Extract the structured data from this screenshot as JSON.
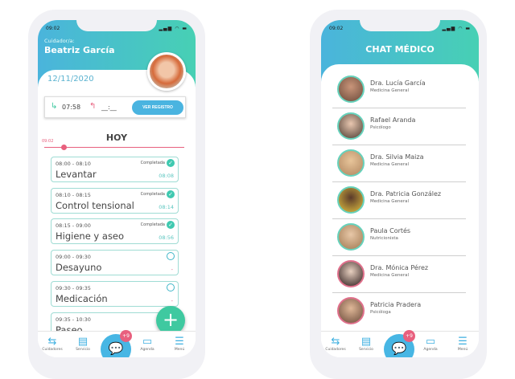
{
  "status_time": "09:02",
  "status_icons": "▂▄▆ ◠ ▬",
  "left": {
    "caregiver_label": "Cuidador/a:",
    "caregiver_name": "Beatriz García",
    "date": "12/11/2020",
    "clock_in": "07:58",
    "clock_out": "__:__",
    "ver_registro": "VER REGISTRO",
    "today": "HOY",
    "now_time": "09:02",
    "tasks": [
      {
        "time": "08:00 - 08:10",
        "name": "Levantar",
        "status": "Completada",
        "done_at": "08:08",
        "done": true
      },
      {
        "time": "08:10 - 08:15",
        "name": "Control tensional",
        "status": "Completada",
        "done_at": "08:14",
        "done": true
      },
      {
        "time": "08:15 - 09:00",
        "name": "Higiene y aseo",
        "status": "Completada",
        "done_at": "08:56",
        "done": true
      },
      {
        "time": "09:00 - 09:30",
        "name": "Desayuno",
        "status": "",
        "done_at": "-",
        "done": false
      },
      {
        "time": "09:30 - 09:35",
        "name": "Medicación",
        "status": "",
        "done_at": "-",
        "done": false
      },
      {
        "time": "09:35  - 10:30",
        "name": "Paseo",
        "status": "",
        "done_at": "",
        "done": false
      }
    ],
    "fab": "+"
  },
  "right": {
    "title": "CHAT MÉDICO",
    "contacts": [
      {
        "name": "Dra. Lucía García",
        "role": "Medicina General"
      },
      {
        "name": "Rafael Aranda",
        "role": "Psicólogo"
      },
      {
        "name": "Dra. Silvia Maiza",
        "role": "Medicina General"
      },
      {
        "name": "Dra. Patricia González",
        "role": "Medicina General"
      },
      {
        "name": "Paula Cortés",
        "role": "Nutricionista"
      },
      {
        "name": "Dra. Mónica Pérez",
        "role": "Medicina General"
      },
      {
        "name": "Patricia Pradera",
        "role": "Psicóloga"
      }
    ]
  },
  "nav": {
    "cuidadores": "Cuidadores",
    "servicio": "Servicio",
    "agenda": "Agenda",
    "menu": "Menú",
    "badge": "+9"
  },
  "colors": {
    "teal": "#47d0b4",
    "blue": "#4ab4dc",
    "pink": "#e8607e"
  }
}
